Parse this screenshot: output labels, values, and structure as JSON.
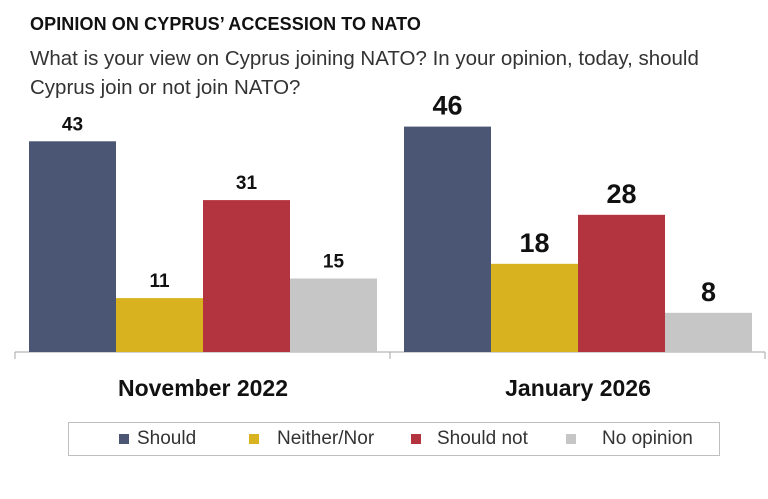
{
  "chart_data": {
    "type": "bar",
    "title": "OPINION ON CYPRUS’ ACCESSION TO NATO",
    "subtitle": "What is your view on Cyprus joining NATO? In your opinion, today, should Cyprus join or not join NATO?",
    "categories": [
      "November 2022",
      "January 2026"
    ],
    "series": [
      {
        "name": "Should",
        "color": "#4a5673",
        "values": [
          43,
          46
        ]
      },
      {
        "name": "Neither/Nor",
        "color": "#d9b21f",
        "values": [
          11,
          18
        ]
      },
      {
        "name": "Should not",
        "color": "#b3333f",
        "values": [
          31,
          28
        ]
      },
      {
        "name": "No opinion",
        "color": "#c6c6c6",
        "values": [
          15,
          8
        ]
      }
    ],
    "ylim": [
      0,
      50
    ],
    "xlabel": "",
    "ylabel": "",
    "grid": false,
    "legend": "bottom"
  }
}
